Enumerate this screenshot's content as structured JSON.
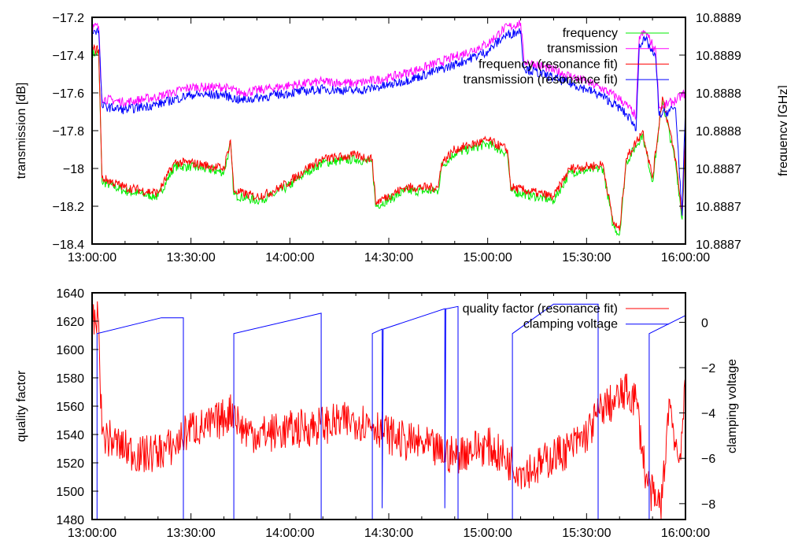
{
  "chart_data": [
    {
      "type": "line",
      "title": "",
      "xlabel": "",
      "ylabel": "transmission [dB]",
      "y2label": "frequency [GHz]",
      "xlim_minutes": [
        0,
        180
      ],
      "xticks": [
        "13:00:00",
        "13:30:00",
        "14:00:00",
        "14:30:00",
        "15:00:00",
        "15:30:00",
        "16:00:00"
      ],
      "ylim": [
        -18.4,
        -17.2
      ],
      "yticks": [
        "-18.4",
        "-18.2",
        "-18",
        "-17.8",
        "-17.6",
        "-17.4",
        "-17.2"
      ],
      "y2ticks": [
        "10.8887",
        "10.8887",
        "10.8887",
        "10.8888",
        "10.8888",
        "10.8889",
        "10.8889"
      ],
      "legend_position": "top-right",
      "series": [
        {
          "name": "frequency",
          "color": "#00ee00",
          "axis": "left",
          "offset": -0.02,
          "x": [
            0,
            2,
            3,
            10,
            20,
            25,
            30,
            40,
            42,
            43,
            50,
            55,
            60,
            65,
            70,
            80,
            85,
            86,
            95,
            105,
            106,
            110,
            120,
            126,
            127,
            135,
            140,
            145,
            155,
            158,
            160,
            162,
            167,
            170,
            173,
            177,
            179,
            180
          ],
          "y": [
            -17.37,
            -17.37,
            -18.05,
            -18.1,
            -18.13,
            -17.97,
            -17.97,
            -18.0,
            -17.85,
            -18.12,
            -18.15,
            -18.12,
            -18.07,
            -18.0,
            -17.95,
            -17.93,
            -17.95,
            -18.18,
            -18.1,
            -18.1,
            -17.97,
            -17.9,
            -17.85,
            -17.9,
            -18.1,
            -18.13,
            -18.15,
            -18.0,
            -17.98,
            -18.28,
            -18.33,
            -17.95,
            -17.8,
            -18.05,
            -17.62,
            -17.95,
            -18.25,
            -17.82
          ]
        },
        {
          "name": "transmission",
          "color": "#ff00ff",
          "axis": "left",
          "offset": 0.02,
          "x": [
            0,
            2,
            3,
            10,
            20,
            30,
            40,
            45,
            60,
            70,
            80,
            90,
            100,
            110,
            120,
            125,
            130,
            131,
            140,
            150,
            155,
            160,
            164,
            165,
            166,
            168,
            171,
            172,
            177,
            180
          ],
          "y": [
            -17.27,
            -17.27,
            -17.65,
            -17.67,
            -17.64,
            -17.59,
            -17.59,
            -17.62,
            -17.58,
            -17.56,
            -17.57,
            -17.54,
            -17.49,
            -17.43,
            -17.36,
            -17.28,
            -17.25,
            -17.45,
            -17.5,
            -17.56,
            -17.6,
            -17.65,
            -17.72,
            -17.75,
            -17.32,
            -17.3,
            -17.4,
            -17.7,
            -17.66,
            -17.62
          ]
        },
        {
          "name": "frequency (resonance fit)",
          "color": "#ff0000",
          "axis": "left",
          "offset": 0,
          "x": [
            0,
            2,
            3,
            10,
            20,
            25,
            30,
            40,
            42,
            43,
            50,
            55,
            60,
            65,
            70,
            80,
            85,
            86,
            95,
            105,
            106,
            110,
            120,
            126,
            127,
            135,
            140,
            145,
            155,
            158,
            160,
            162,
            167,
            170,
            173,
            177,
            179,
            180
          ],
          "y": [
            -17.37,
            -17.37,
            -18.05,
            -18.1,
            -18.13,
            -17.97,
            -17.97,
            -18.0,
            -17.85,
            -18.12,
            -18.15,
            -18.12,
            -18.07,
            -18.0,
            -17.95,
            -17.93,
            -17.95,
            -18.18,
            -18.1,
            -18.1,
            -17.97,
            -17.9,
            -17.85,
            -17.9,
            -18.1,
            -18.13,
            -18.15,
            -18.0,
            -17.98,
            -18.28,
            -18.33,
            -17.95,
            -17.8,
            -18.05,
            -17.62,
            -17.95,
            -18.25,
            -17.82
          ]
        },
        {
          "name": "transmission (resonance fit)",
          "color": "#0000ff",
          "axis": "left",
          "offset": 0,
          "x": [
            0,
            2,
            3,
            10,
            20,
            30,
            40,
            45,
            60,
            70,
            80,
            90,
            100,
            110,
            120,
            125,
            130,
            131,
            140,
            150,
            155,
            160,
            164,
            165,
            166,
            168,
            171,
            172,
            177,
            179,
            180
          ],
          "y": [
            -17.27,
            -17.27,
            -17.67,
            -17.69,
            -17.66,
            -17.61,
            -17.61,
            -17.64,
            -17.6,
            -17.58,
            -17.59,
            -17.56,
            -17.51,
            -17.45,
            -17.38,
            -17.3,
            -17.27,
            -17.47,
            -17.52,
            -17.58,
            -17.62,
            -17.68,
            -17.75,
            -17.8,
            -17.34,
            -17.32,
            -17.42,
            -17.72,
            -17.68,
            -18.25,
            -17.65
          ]
        }
      ]
    },
    {
      "type": "line",
      "title": "",
      "xlabel": "",
      "ylabel": "quality factor",
      "y2label": "clamping voltage",
      "xlim_minutes": [
        0,
        180
      ],
      "xticks": [
        "13:00:00",
        "13:30:00",
        "14:00:00",
        "14:30:00",
        "15:00:00",
        "15:30:00",
        "16:00:00"
      ],
      "ylim": [
        1480,
        1640
      ],
      "yticks": [
        "1480",
        "1500",
        "1520",
        "1540",
        "1560",
        "1580",
        "1600",
        "1620",
        "1640"
      ],
      "y2lim": [
        -8.7,
        1.3
      ],
      "y2ticks": [
        "-8",
        "-6",
        "-4",
        "-2",
        "0"
      ],
      "legend_position": "top-right",
      "series": [
        {
          "name": "quality factor (resonance fit)",
          "color": "#ff0000",
          "axis": "left",
          "x": [
            0,
            2,
            3,
            10,
            15,
            20,
            25,
            30,
            35,
            40,
            43,
            45,
            50,
            60,
            70,
            80,
            85,
            90,
            95,
            100,
            105,
            110,
            115,
            120,
            127,
            130,
            135,
            140,
            145,
            150,
            155,
            158,
            162,
            165,
            168,
            171,
            173,
            175,
            178,
            180
          ],
          "y": [
            1620,
            1620,
            1540,
            1530,
            1525,
            1528,
            1532,
            1545,
            1545,
            1552,
            1558,
            1545,
            1540,
            1543,
            1547,
            1550,
            1548,
            1540,
            1535,
            1533,
            1528,
            1525,
            1530,
            1532,
            1520,
            1515,
            1517,
            1525,
            1530,
            1540,
            1560,
            1562,
            1570,
            1565,
            1510,
            1490,
            1495,
            1565,
            1520,
            1570
          ]
        },
        {
          "name": "clamping voltage",
          "color": "#0000ff",
          "axis": "right",
          "x": [
            0,
            1.5,
            1.5,
            21,
            27.7,
            27.7,
            43,
            43,
            69.5,
            69.5,
            85,
            85,
            88,
            88,
            88.3,
            107,
            107,
            107.3,
            107.6,
            111,
            111,
            127.5,
            127.5,
            140,
            153.5,
            153.5,
            169,
            169,
            180
          ],
          "y": [
            -8.7,
            -8.7,
            -0.5,
            0.2,
            0.2,
            -8.7,
            -8.7,
            -0.5,
            0.4,
            -8.7,
            -8.7,
            -0.5,
            -0.3,
            -8.2,
            -0.3,
            0.6,
            -8.2,
            0.6,
            0.6,
            0.7,
            -8.7,
            -8.7,
            -0.5,
            0.8,
            0.8,
            -8.7,
            -8.7,
            -0.5,
            0.3
          ]
        }
      ]
    }
  ]
}
